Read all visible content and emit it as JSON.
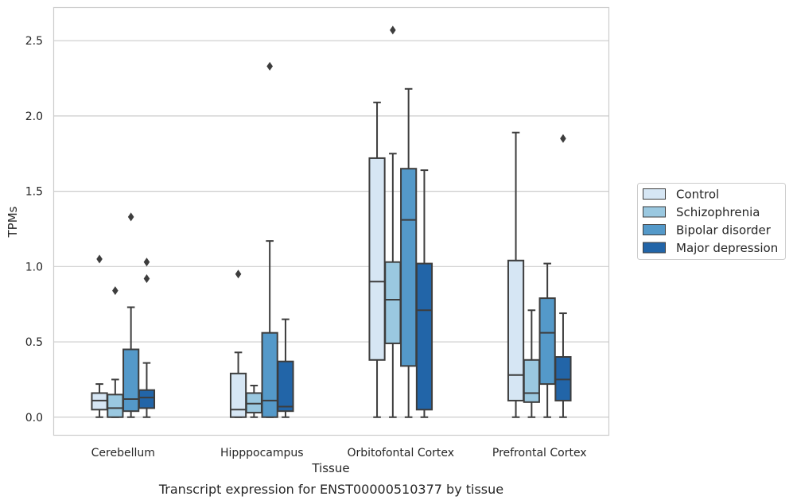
{
  "caption": "Transcript expression for ENST00000510377 by tissue",
  "chart_data": {
    "type": "box",
    "xlabel": "Tissue",
    "ylabel": "TPMs",
    "ylim": [
      -0.12,
      2.72
    ],
    "yticks": [
      0.0,
      0.5,
      1.0,
      1.5,
      2.0,
      2.5
    ],
    "ytick_labels": [
      "0.0",
      "0.5",
      "1.0",
      "1.5",
      "2.0",
      "2.5"
    ],
    "grid": true,
    "legend_position": "right",
    "categories": [
      "Cerebellum",
      "Hipppocampus",
      "Orbitofontal Cortex",
      "Prefrontal Cortex"
    ],
    "series": [
      {
        "name": "Control",
        "color": "#d6e6f4",
        "boxes": [
          {
            "whislo": 0.0,
            "q1": 0.05,
            "median": 0.11,
            "q3": 0.16,
            "whishi": 0.22,
            "fliers": [
              1.05
            ]
          },
          {
            "whislo": 0.0,
            "q1": 0.0,
            "median": 0.05,
            "q3": 0.29,
            "whishi": 0.43,
            "fliers": [
              0.95
            ]
          },
          {
            "whislo": 0.0,
            "q1": 0.38,
            "median": 0.9,
            "q3": 1.72,
            "whishi": 2.09,
            "fliers": []
          },
          {
            "whislo": 0.0,
            "q1": 0.11,
            "median": 0.28,
            "q3": 1.04,
            "whishi": 1.89,
            "fliers": []
          }
        ]
      },
      {
        "name": "Schizophrenia",
        "color": "#9ac8e0",
        "boxes": [
          {
            "whislo": 0.0,
            "q1": 0.0,
            "median": 0.06,
            "q3": 0.15,
            "whishi": 0.25,
            "fliers": [
              0.84
            ]
          },
          {
            "whislo": 0.0,
            "q1": 0.03,
            "median": 0.09,
            "q3": 0.16,
            "whishi": 0.21,
            "fliers": []
          },
          {
            "whislo": 0.0,
            "q1": 0.49,
            "median": 0.78,
            "q3": 1.03,
            "whishi": 1.75,
            "fliers": [
              2.57
            ]
          },
          {
            "whislo": 0.0,
            "q1": 0.1,
            "median": 0.16,
            "q3": 0.38,
            "whishi": 0.71,
            "fliers": []
          }
        ]
      },
      {
        "name": "Bipolar disorder",
        "color": "#5499c9",
        "boxes": [
          {
            "whislo": 0.0,
            "q1": 0.04,
            "median": 0.12,
            "q3": 0.45,
            "whishi": 0.73,
            "fliers": [
              1.33
            ]
          },
          {
            "whislo": 0.0,
            "q1": 0.0,
            "median": 0.11,
            "q3": 0.56,
            "whishi": 1.17,
            "fliers": [
              2.33
            ]
          },
          {
            "whislo": 0.0,
            "q1": 0.34,
            "median": 1.31,
            "q3": 1.65,
            "whishi": 2.18,
            "fliers": []
          },
          {
            "whislo": 0.0,
            "q1": 0.22,
            "median": 0.56,
            "q3": 0.79,
            "whishi": 1.02,
            "fliers": []
          }
        ]
      },
      {
        "name": "Major depression",
        "color": "#2265a8",
        "boxes": [
          {
            "whislo": 0.0,
            "q1": 0.06,
            "median": 0.13,
            "q3": 0.18,
            "whishi": 0.36,
            "fliers": [
              0.92,
              1.03
            ]
          },
          {
            "whislo": 0.0,
            "q1": 0.04,
            "median": 0.07,
            "q3": 0.37,
            "whishi": 0.65,
            "fliers": []
          },
          {
            "whislo": 0.0,
            "q1": 0.05,
            "median": 0.71,
            "q3": 1.02,
            "whishi": 1.64,
            "fliers": []
          },
          {
            "whislo": 0.0,
            "q1": 0.11,
            "median": 0.25,
            "q3": 0.4,
            "whishi": 0.69,
            "fliers": [
              1.85
            ]
          }
        ]
      }
    ]
  }
}
